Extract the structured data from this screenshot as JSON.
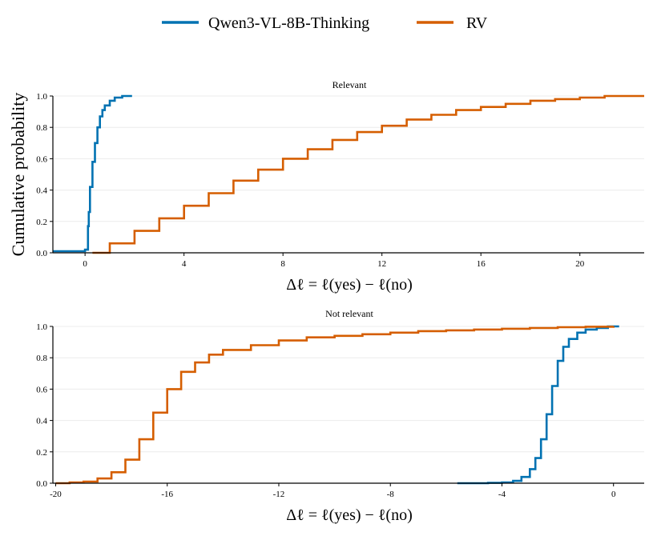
{
  "legend": [
    {
      "name": "Qwen3-VL-8B-Thinking",
      "color": "#0072b2"
    },
    {
      "name": "RV",
      "color": "#d55e00"
    }
  ],
  "shared_ylabel": "Cumulative probability",
  "chart_data": [
    {
      "type": "line",
      "step": true,
      "title": "Relevant",
      "xlabel": "Δℓ = ℓ(yes) − ℓ(no)",
      "ylabel": "Cumulative probability",
      "xlim": [
        -1.3,
        22.6
      ],
      "ylim": [
        0,
        1
      ],
      "xticks": [
        0,
        4,
        8,
        12,
        16,
        20
      ],
      "xtick_labels": [
        "0",
        "4",
        "8",
        "12",
        "16",
        "20"
      ],
      "yticks": [
        0,
        0.2,
        0.4,
        0.6,
        0.8,
        1.0
      ],
      "ytick_labels": [
        "0.0",
        "0.2",
        "0.4",
        "0.6",
        "0.8",
        "1.0"
      ],
      "series": [
        {
          "name": "Qwen3-VL-8B-Thinking",
          "x": [
            -1.3,
            0.0,
            0.1,
            0.12,
            0.15,
            0.2,
            0.3,
            0.4,
            0.5,
            0.6,
            0.7,
            0.8,
            1.0,
            1.2,
            1.5,
            1.9
          ],
          "y": [
            0.01,
            0.02,
            0.02,
            0.17,
            0.26,
            0.42,
            0.58,
            0.7,
            0.8,
            0.87,
            0.91,
            0.94,
            0.97,
            0.99,
            1.0,
            1.0
          ]
        },
        {
          "name": "RV",
          "x": [
            0.3,
            1,
            2,
            3,
            4,
            5,
            6,
            7,
            8,
            9,
            10,
            11,
            12,
            13,
            14,
            15,
            16,
            17,
            18,
            19,
            20,
            21,
            22,
            22.6
          ],
          "y": [
            0.0,
            0.06,
            0.14,
            0.22,
            0.3,
            0.38,
            0.46,
            0.53,
            0.6,
            0.66,
            0.72,
            0.77,
            0.81,
            0.85,
            0.88,
            0.91,
            0.93,
            0.95,
            0.97,
            0.98,
            0.99,
            1.0,
            1.0,
            1.0
          ]
        }
      ]
    },
    {
      "type": "line",
      "step": true,
      "title": "Not relevant",
      "xlabel": "Δℓ = ℓ(yes) − ℓ(no)",
      "ylabel": "Cumulative probability",
      "xlim": [
        -20.1,
        1.1
      ],
      "ylim": [
        0,
        1
      ],
      "xticks": [
        -20,
        -16,
        -12,
        -8,
        -4,
        0
      ],
      "xtick_labels": [
        "-20",
        "-16",
        "-12",
        "-8",
        "-4",
        "0"
      ],
      "yticks": [
        0,
        0.2,
        0.4,
        0.6,
        0.8,
        1.0
      ],
      "ytick_labels": [
        "0.0",
        "0.2",
        "0.4",
        "0.6",
        "0.8",
        "1.0"
      ],
      "series": [
        {
          "name": "Qwen3-VL-8B-Thinking",
          "x": [
            -5.6,
            -4.5,
            -4.0,
            -3.6,
            -3.3,
            -3.0,
            -2.8,
            -2.6,
            -2.4,
            -2.2,
            -2.0,
            -1.8,
            -1.6,
            -1.3,
            -1.0,
            -0.6,
            -0.2,
            0.2
          ],
          "y": [
            0.0,
            0.002,
            0.005,
            0.015,
            0.04,
            0.09,
            0.16,
            0.28,
            0.44,
            0.62,
            0.78,
            0.87,
            0.92,
            0.96,
            0.98,
            0.99,
            1.0,
            1.0
          ]
        },
        {
          "name": "RV",
          "x": [
            -20,
            -19.5,
            -19,
            -18.5,
            -18,
            -17.5,
            -17,
            -16.5,
            -16,
            -15.5,
            -15,
            -14.5,
            -14,
            -13,
            -12,
            -11,
            -10,
            -9,
            -8,
            -7,
            -6,
            -5,
            -4,
            -3,
            -2,
            -1,
            0
          ],
          "y": [
            0.0,
            0.005,
            0.01,
            0.03,
            0.07,
            0.15,
            0.28,
            0.45,
            0.6,
            0.71,
            0.77,
            0.82,
            0.85,
            0.88,
            0.91,
            0.93,
            0.94,
            0.95,
            0.96,
            0.97,
            0.975,
            0.98,
            0.985,
            0.99,
            0.995,
            0.998,
            1.0
          ]
        }
      ]
    }
  ]
}
